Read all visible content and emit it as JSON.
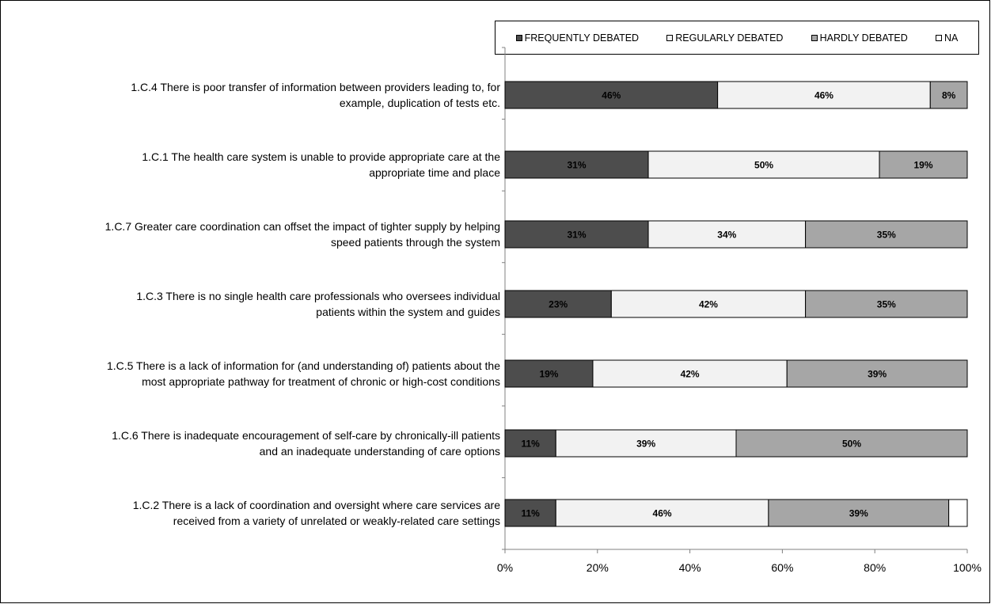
{
  "chart_data": {
    "type": "bar",
    "orientation": "horizontal",
    "stacked": "percent",
    "categories": [
      "1.C.4  There is poor transfer of information between providers leading to, for example, duplication of tests etc.",
      "1.C.1  The health care system is unable to provide appropriate care at the appropriate time and place",
      "1.C.7  Greater care coordination can offset the impact of tighter supply by helping speed patients through the system",
      "1.C.3  There is no single health care professionals who oversees individual patients within the system and guides",
      "1.C.5  There is a lack of information for (and understanding of) patients about the most appropriate pathway for treatment of chronic or high-cost conditions",
      "1.C.6  There is inadequate encouragement of self-care by chronically-ill patients and an inadequate understanding of care options",
      "1.C.2  There is a lack of coordination and oversight where care services are received from a variety of unrelated or  weakly-related care settings"
    ],
    "category_lines": [
      [
        "1.C.4  There is poor transfer of information between providers leading to, for",
        "example, duplication of tests etc."
      ],
      [
        "1.C.1  The health care system is unable to provide appropriate care at the",
        "appropriate time and place"
      ],
      [
        "1.C.7  Greater care coordination can offset the impact of tighter supply by helping",
        "speed patients through the system"
      ],
      [
        "1.C.3  There is no single health care professionals who oversees individual",
        "patients within the system and guides"
      ],
      [
        "1.C.5  There is a lack of information for (and understanding of) patients about the",
        "most appropriate pathway for treatment of chronic or high-cost conditions"
      ],
      [
        "1.C.6  There is inadequate encouragement of self-care by chronically-ill patients",
        "and an inadequate understanding of care options"
      ],
      [
        "1.C.2  There is a lack of coordination and oversight where care services are",
        "received from a variety of unrelated or  weakly-related care settings"
      ]
    ],
    "series": [
      {
        "name": "FREQUENTLY DEBATED",
        "color": "#4d4d4d",
        "values": [
          46,
          31,
          31,
          23,
          19,
          11,
          11
        ],
        "labels": [
          "46%",
          "31%",
          "31%",
          "23%",
          "19%",
          "11%",
          "11%"
        ]
      },
      {
        "name": "REGULARLY DEBATED",
        "color": "#f2f2f2",
        "values": [
          46,
          50,
          34,
          42,
          42,
          39,
          46
        ],
        "labels": [
          "46%",
          "50%",
          "34%",
          "42%",
          "42%",
          "39%",
          "46%"
        ]
      },
      {
        "name": "HARDLY DEBATED",
        "color": "#a6a6a6",
        "values": [
          8,
          19,
          35,
          35,
          39,
          50,
          39
        ],
        "labels": [
          "8%",
          "19%",
          "35%",
          "35%",
          "39%",
          "50%",
          "39%"
        ]
      },
      {
        "name": "NA",
        "color": "#ffffff",
        "values": [
          0,
          0,
          0,
          0,
          0,
          0,
          4
        ],
        "labels": [
          "",
          "",
          "",
          "",
          "",
          "",
          ""
        ]
      }
    ],
    "xlim": [
      0,
      100
    ],
    "x_ticks": [
      "0%",
      "20%",
      "40%",
      "60%",
      "80%",
      "100%"
    ],
    "legend_position": "top",
    "grid": false
  }
}
